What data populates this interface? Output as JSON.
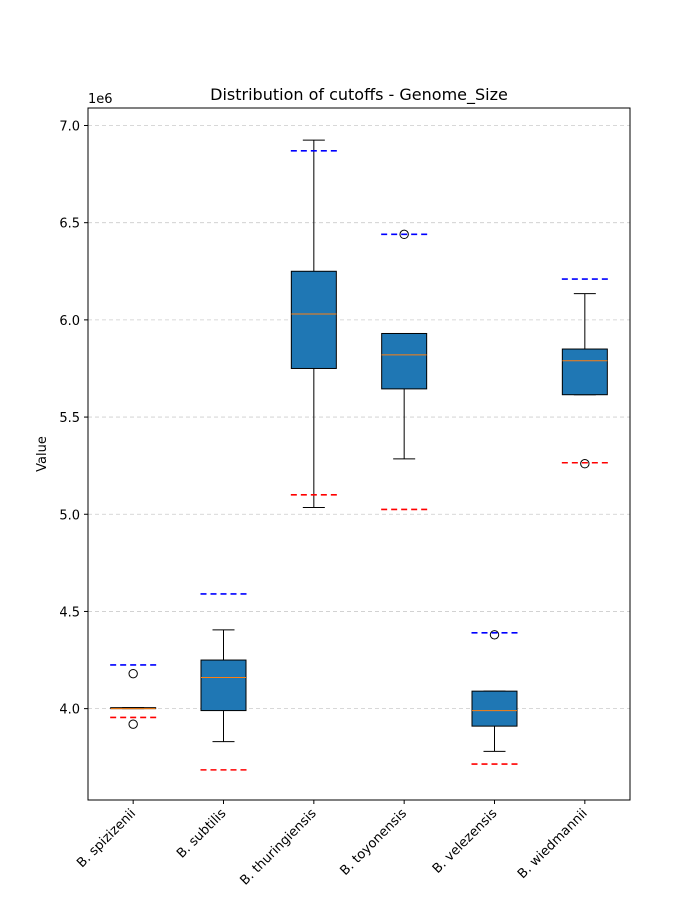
{
  "chart_data": {
    "type": "box",
    "title": "Distribution of cutoffs - Genome_Size",
    "xlabel": "",
    "ylabel": "Value",
    "y_offset_label": "1e6",
    "y_scale": 1000000,
    "ylim": [
      3.53,
      7.09
    ],
    "yticks": [
      4.0,
      4.5,
      5.0,
      5.5,
      6.0,
      6.5,
      7.0
    ],
    "ytick_labels": [
      "4.0",
      "4.5",
      "5.0",
      "5.5",
      "6.0",
      "6.5",
      "7.0"
    ],
    "grid": "horizontal dashed",
    "x_tick_rotation": 45,
    "colors": {
      "box_fill": "#1f77b4",
      "median": "#ff7f0e",
      "upper_cutoff": "#0000ff",
      "lower_cutoff": "#ff0000",
      "grid": "#cccccc"
    },
    "categories": [
      "B. spizizenii",
      "B. subtilis",
      "B. thuringiensis",
      "B. toyonensis",
      "B. velezensis",
      "B. wiedmannii"
    ],
    "boxes": [
      {
        "label": "B. spizizenii",
        "whisker_low": 4.0,
        "q1": 4.0,
        "median": 4.0,
        "q3": 4.005,
        "whisker_high": 4.005,
        "outliers": [
          4.18,
          3.92
        ],
        "upper_cutoff": 4.225,
        "lower_cutoff": 3.955
      },
      {
        "label": "B. subtilis",
        "whisker_low": 3.83,
        "q1": 3.99,
        "median": 4.16,
        "q3": 4.25,
        "whisker_high": 4.405,
        "outliers": [],
        "upper_cutoff": 4.59,
        "lower_cutoff": 3.685
      },
      {
        "label": "B. thuringiensis",
        "whisker_low": 5.035,
        "q1": 5.75,
        "median": 6.03,
        "q3": 6.25,
        "whisker_high": 6.925,
        "outliers": [],
        "upper_cutoff": 6.87,
        "lower_cutoff": 5.1
      },
      {
        "label": "B. toyonensis",
        "whisker_low": 5.285,
        "q1": 5.645,
        "median": 5.82,
        "q3": 5.93,
        "whisker_high": 5.93,
        "outliers": [
          6.44
        ],
        "upper_cutoff": 6.44,
        "lower_cutoff": 5.025
      },
      {
        "label": "B. velezensis",
        "whisker_low": 3.78,
        "q1": 3.91,
        "median": 3.99,
        "q3": 4.09,
        "whisker_high": 4.09,
        "outliers": [
          4.38
        ],
        "upper_cutoff": 4.39,
        "lower_cutoff": 3.715
      },
      {
        "label": "B. wiedmannii",
        "whisker_low": 5.615,
        "q1": 5.615,
        "median": 5.79,
        "q3": 5.85,
        "whisker_high": 6.135,
        "outliers": [
          5.26
        ],
        "upper_cutoff": 6.21,
        "lower_cutoff": 5.265
      }
    ]
  }
}
